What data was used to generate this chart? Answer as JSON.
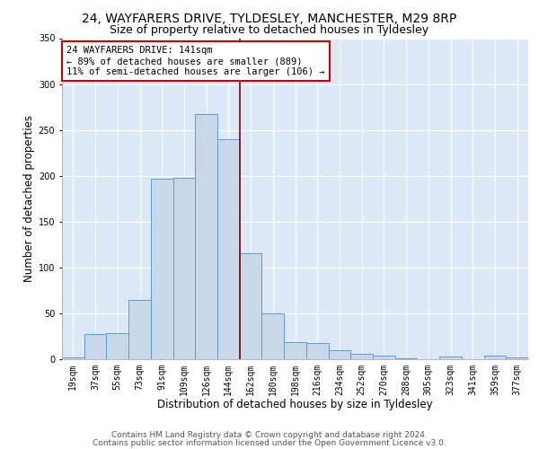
{
  "title1": "24, WAYFARERS DRIVE, TYLDESLEY, MANCHESTER, M29 8RP",
  "title2": "Size of property relative to detached houses in Tyldesley",
  "xlabel": "Distribution of detached houses by size in Tyldesley",
  "ylabel": "Number of detached properties",
  "bin_labels": [
    "19sqm",
    "37sqm",
    "55sqm",
    "73sqm",
    "91sqm",
    "109sqm",
    "126sqm",
    "144sqm",
    "162sqm",
    "180sqm",
    "198sqm",
    "216sqm",
    "234sqm",
    "252sqm",
    "270sqm",
    "288sqm",
    "305sqm",
    "323sqm",
    "341sqm",
    "359sqm",
    "377sqm"
  ],
  "bar_heights": [
    2,
    27,
    28,
    65,
    197,
    198,
    267,
    240,
    116,
    50,
    19,
    18,
    10,
    6,
    4,
    1,
    0,
    3,
    0,
    4,
    2
  ],
  "bar_color": "#c8d8e8",
  "bar_edgecolor": "#5b9bd5",
  "vline_x": 7.5,
  "vline_color": "#8b0000",
  "annotation_text": "24 WAYFARERS DRIVE: 141sqm\n← 89% of detached houses are smaller (889)\n11% of semi-detached houses are larger (106) →",
  "annotation_box_color": "#ffffff",
  "annotation_box_edgecolor": "#cc0000",
  "ylim": [
    0,
    350
  ],
  "yticks": [
    0,
    50,
    100,
    150,
    200,
    250,
    300,
    350
  ],
  "bg_color": "#dce8f5",
  "footer1": "Contains HM Land Registry data © Crown copyright and database right 2024.",
  "footer2": "Contains public sector information licensed under the Open Government Licence v3.0.",
  "title1_fontsize": 10,
  "title2_fontsize": 9,
  "xlabel_fontsize": 8.5,
  "ylabel_fontsize": 8.5,
  "tick_fontsize": 7,
  "footer_fontsize": 6.5,
  "annotation_fontsize": 7.5
}
